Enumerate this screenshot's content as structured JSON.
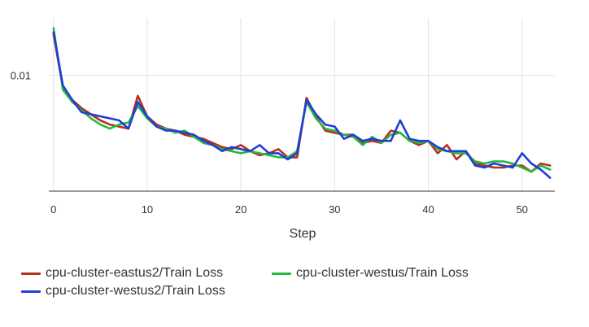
{
  "chart_data": {
    "type": "line",
    "xlabel": "Step",
    "ylabel": "",
    "title": "",
    "xlim": [
      -0.5,
      53.5
    ],
    "ylim": [
      0.00435,
      0.0128
    ],
    "x_ticks": [
      0,
      10,
      20,
      30,
      40,
      50
    ],
    "y_ticks": [
      {
        "value": 0.01,
        "label": "0.01"
      }
    ],
    "grid": true,
    "legend_position": "bottom",
    "series": [
      {
        "name": "cpu-cluster-eastus2/Train Loss",
        "color": "#b5301f",
        "x": [
          0,
          1,
          2,
          3,
          4,
          5,
          6,
          7,
          8,
          9,
          10,
          11,
          12,
          13,
          14,
          15,
          16,
          17,
          18,
          19,
          20,
          21,
          22,
          23,
          24,
          25,
          26,
          27,
          28,
          29,
          30,
          31,
          32,
          33,
          34,
          35,
          36,
          37,
          38,
          39,
          40,
          41,
          42,
          43,
          44,
          45,
          46,
          47,
          48,
          49,
          50,
          51,
          52,
          53
        ],
        "y": [
          0.012,
          0.0094,
          0.0088,
          0.0084,
          0.0081,
          0.0078,
          0.0076,
          0.0075,
          0.0074,
          0.009,
          0.008,
          0.0076,
          0.0074,
          0.0073,
          0.0071,
          0.007,
          0.0069,
          0.0067,
          0.0065,
          0.0064,
          0.0066,
          0.0063,
          0.0061,
          0.0062,
          0.0064,
          0.006,
          0.006,
          0.0089,
          0.008,
          0.0073,
          0.0072,
          0.0071,
          0.0071,
          0.0067,
          0.0068,
          0.0067,
          0.0073,
          0.0072,
          0.0068,
          0.0066,
          0.0068,
          0.0062,
          0.0066,
          0.0059,
          0.0063,
          0.0057,
          0.0056,
          0.0055,
          0.0055,
          0.0056,
          0.0056,
          0.0053,
          0.0057,
          0.0056
        ]
      },
      {
        "name": "cpu-cluster-westus/Train Loss",
        "color": "#27b93a",
        "x": [
          0,
          1,
          2,
          3,
          4,
          5,
          6,
          7,
          8,
          9,
          10,
          11,
          12,
          13,
          14,
          15,
          16,
          17,
          18,
          19,
          20,
          21,
          22,
          23,
          24,
          25,
          26,
          27,
          28,
          29,
          30,
          31,
          32,
          33,
          34,
          35,
          36,
          37,
          38,
          39,
          40,
          41,
          42,
          43,
          44,
          45,
          46,
          47,
          48,
          49,
          50,
          51,
          52,
          53
        ],
        "y": [
          0.0123,
          0.0093,
          0.0087,
          0.0083,
          0.0079,
          0.0076,
          0.0074,
          0.0076,
          0.0077,
          0.0085,
          0.0079,
          0.0075,
          0.0074,
          0.0072,
          0.0073,
          0.007,
          0.0067,
          0.0066,
          0.0064,
          0.0063,
          0.0062,
          0.0063,
          0.0062,
          0.0061,
          0.006,
          0.006,
          0.0063,
          0.0087,
          0.0079,
          0.0074,
          0.0073,
          0.0071,
          0.007,
          0.0066,
          0.007,
          0.0067,
          0.0071,
          0.0072,
          0.0068,
          0.0067,
          0.0068,
          0.0064,
          0.0063,
          0.0062,
          0.0062,
          0.0058,
          0.0057,
          0.0058,
          0.0058,
          0.0057,
          0.0055,
          0.0053,
          0.0056,
          0.0054
        ]
      },
      {
        "name": "cpu-cluster-westus2/Train Loss",
        "color": "#1f3ed8",
        "x": [
          0,
          1,
          2,
          3,
          4,
          5,
          6,
          7,
          8,
          9,
          10,
          11,
          12,
          13,
          14,
          15,
          16,
          17,
          18,
          19,
          20,
          21,
          22,
          23,
          24,
          25,
          26,
          27,
          28,
          29,
          30,
          31,
          32,
          33,
          34,
          35,
          36,
          37,
          38,
          39,
          40,
          41,
          42,
          43,
          44,
          45,
          46,
          47,
          48,
          49,
          50,
          51,
          52,
          53
        ],
        "y": [
          0.0121,
          0.0095,
          0.0088,
          0.0082,
          0.0081,
          0.008,
          0.0079,
          0.0078,
          0.0074,
          0.0087,
          0.008,
          0.0075,
          0.0073,
          0.0073,
          0.0072,
          0.0071,
          0.0068,
          0.0066,
          0.0063,
          0.0065,
          0.0064,
          0.0063,
          0.0066,
          0.0062,
          0.0062,
          0.0059,
          0.0062,
          0.0088,
          0.0081,
          0.0076,
          0.0075,
          0.0069,
          0.0071,
          0.0068,
          0.0069,
          0.0068,
          0.0068,
          0.0078,
          0.0069,
          0.0068,
          0.0068,
          0.0065,
          0.0063,
          0.0063,
          0.0063,
          0.0056,
          0.0055,
          0.0057,
          0.0056,
          0.0055,
          0.0062,
          0.0057,
          0.0054,
          0.005
        ]
      }
    ]
  }
}
